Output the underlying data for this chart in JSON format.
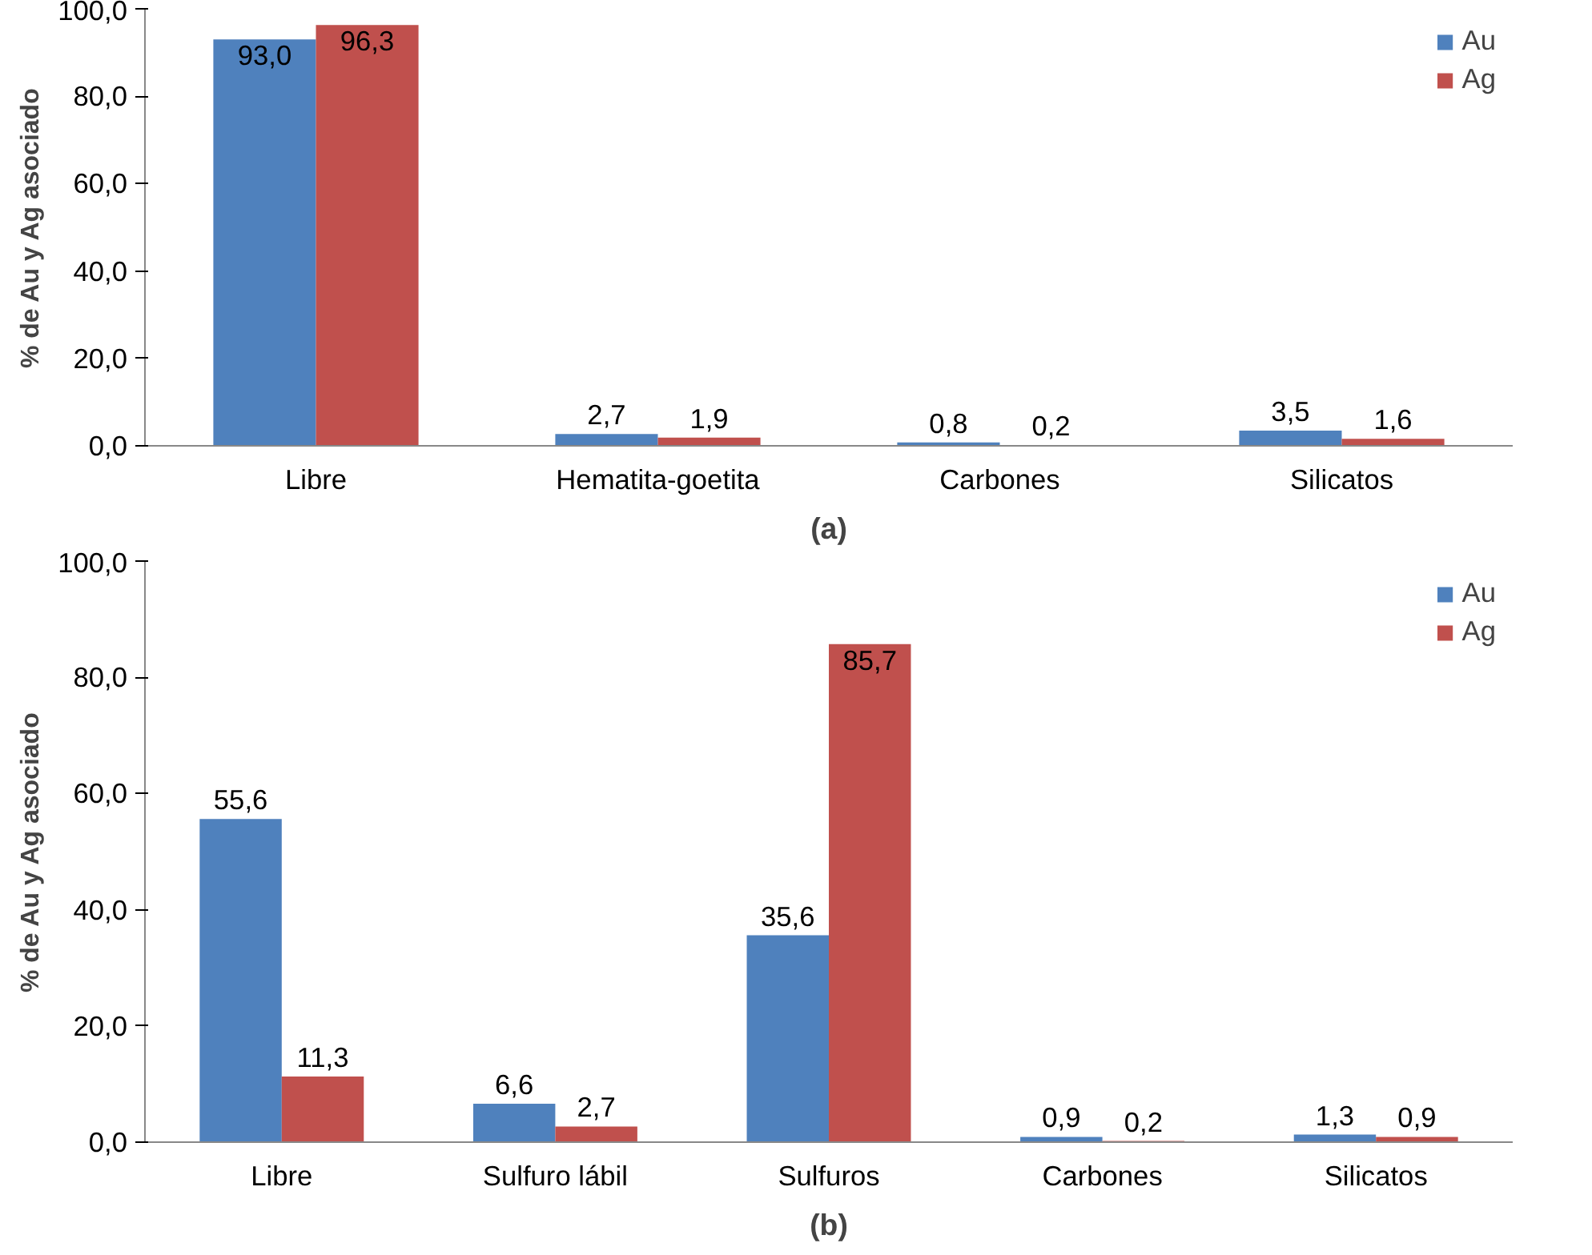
{
  "chart_data": [
    {
      "type": "bar",
      "ylabel": "% de Au y Ag asociado",
      "categories": [
        "Libre",
        "Hematita-goetita",
        "Carbones",
        "Silicatos"
      ],
      "series": [
        {
          "name": "Au",
          "color": "#4f81bd",
          "values": [
            93.0,
            2.7,
            0.8,
            3.5
          ],
          "value_labels": [
            "93,0",
            "2,7",
            "0,8",
            "3,5"
          ]
        },
        {
          "name": "Ag",
          "color": "#c0504d",
          "values": [
            96.3,
            1.9,
            0.2,
            1.6
          ],
          "value_labels": [
            "96,3",
            "1,9",
            "0,2",
            "1,6"
          ]
        }
      ],
      "ylim": [
        0,
        100
      ],
      "yticks": [
        {
          "value": 0,
          "label": "0,0"
        },
        {
          "value": 20,
          "label": "20,0"
        },
        {
          "value": 40,
          "label": "40,0"
        },
        {
          "value": 60,
          "label": "60,0"
        },
        {
          "value": 80,
          "label": "80,0"
        },
        {
          "value": 100,
          "label": "100,0"
        }
      ],
      "grid": false,
      "legend": "top right",
      "annotations": [
        "(a)"
      ]
    },
    {
      "type": "bar",
      "ylabel": "% de Au y Ag asociado",
      "categories": [
        "Libre",
        "Sulfuro lábil",
        "Sulfuros",
        "Carbones",
        "Silicatos"
      ],
      "series": [
        {
          "name": "Au",
          "color": "#4f81bd",
          "values": [
            55.6,
            6.6,
            35.6,
            0.9,
            1.3
          ],
          "value_labels": [
            "55,6",
            "6,6",
            "35,6",
            "0,9",
            "1,3"
          ]
        },
        {
          "name": "Ag",
          "color": "#c0504d",
          "values": [
            11.3,
            2.7,
            85.7,
            0.2,
            0.9
          ],
          "value_labels": [
            "11,3",
            "2,7",
            "85,7",
            "0,2",
            "0,9"
          ]
        }
      ],
      "ylim": [
        0,
        100
      ],
      "yticks": [
        {
          "value": 0,
          "label": "0,0"
        },
        {
          "value": 20,
          "label": "20,0"
        },
        {
          "value": 40,
          "label": "40,0"
        },
        {
          "value": 60,
          "label": "60,0"
        },
        {
          "value": 80,
          "label": "80,0"
        },
        {
          "value": 100,
          "label": "100,0"
        }
      ],
      "grid": false,
      "legend": "top right",
      "annotations": [
        "(b)"
      ]
    }
  ]
}
